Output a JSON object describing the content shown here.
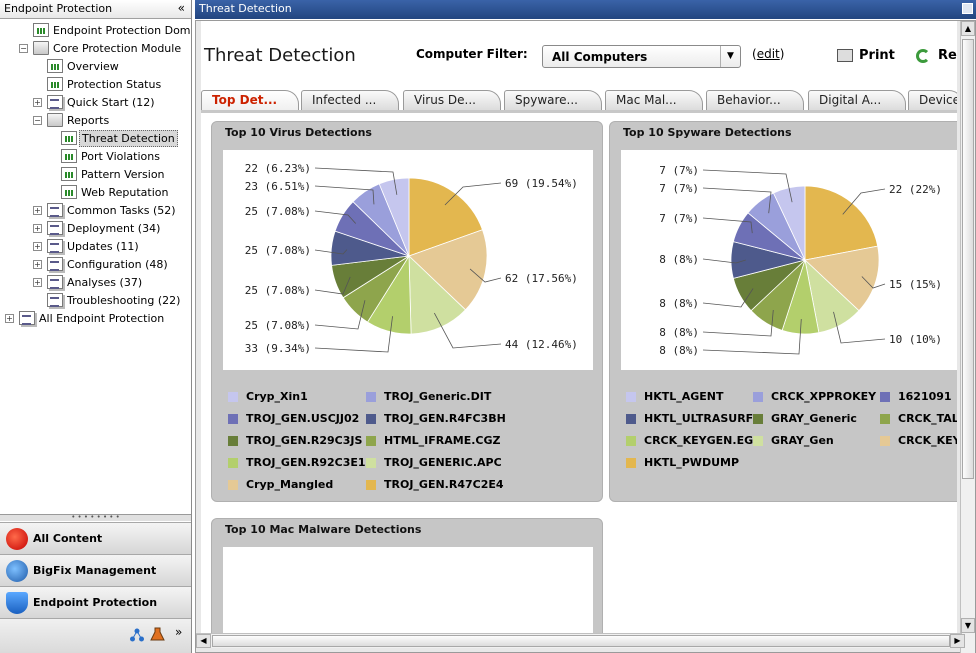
{
  "left_pane": {
    "title": "Endpoint Protection",
    "collapse_glyph": "«",
    "tree": [
      {
        "label": "Endpoint Protection Domain",
        "icon": "page-icon"
      },
      {
        "label": "Core Protection Module",
        "icon": "folder-icon",
        "expanded": true
      },
      {
        "label": "Overview",
        "icon": "report-icon"
      },
      {
        "label": "Protection Status",
        "icon": "report-icon"
      },
      {
        "label": "Quick Start (12)",
        "icon": "stack-icon"
      },
      {
        "label": "Reports",
        "icon": "folder-icon",
        "expanded": true
      },
      {
        "label": "Threat Detection",
        "icon": "report-icon",
        "selected": true
      },
      {
        "label": "Port Violations",
        "icon": "report-icon"
      },
      {
        "label": "Pattern Version",
        "icon": "report-icon"
      },
      {
        "label": "Web Reputation",
        "icon": "report-icon"
      },
      {
        "label": "Common Tasks (52)",
        "icon": "stack-icon"
      },
      {
        "label": "Deployment (34)",
        "icon": "stack-icon"
      },
      {
        "label": "Updates (11)",
        "icon": "stack-icon"
      },
      {
        "label": "Configuration (48)",
        "icon": "stack-icon"
      },
      {
        "label": "Analyses (37)",
        "icon": "stack-icon"
      },
      {
        "label": "Troubleshooting (22)",
        "icon": "stack-icon"
      },
      {
        "label": "All Endpoint Protection",
        "icon": "stack-icon"
      }
    ],
    "nav_buttons": [
      {
        "label": "All Content",
        "icon": "trendmicro-icon"
      },
      {
        "label": "BigFix Management",
        "icon": "globe-icon"
      },
      {
        "label": "Endpoint Protection",
        "icon": "shield-icon"
      }
    ],
    "footer_more": "»"
  },
  "right_pane": {
    "title": "Threat Detection",
    "heading": "Threat Detection",
    "filter_label": "Computer Filter:",
    "filter_value": "All Computers",
    "edit_link": "edit",
    "print_label": "Print",
    "refresh_label": "Refr",
    "tabs": [
      "Top Det...",
      "Infected ...",
      "Virus De...",
      "Spyware...",
      "Mac Mal...",
      "Behavior...",
      "Digital A...",
      "Device"
    ],
    "active_tab": 0
  },
  "panels": {
    "virus_title": "Top 10 Virus Detections",
    "spyware_title": "Top 10 Spyware Detections",
    "mac_title": "Top 10 Mac Malware Detections"
  },
  "colors": {
    "accent_title_bar": "#2c4f8c",
    "active_tab_text": "#cc2200",
    "panel_bg": "#c6c6c6"
  },
  "chart_data": [
    {
      "type": "pie",
      "title": "Top 10 Virus Detections",
      "slices": [
        {
          "name": "TROJ_GEN.R47C2E4",
          "value": 69,
          "label": "69 (19.54%)",
          "color": "#e3b74f"
        },
        {
          "name": "Cryp_Mangled",
          "value": 62,
          "label": "62 (17.56%)",
          "color": "#e5c995"
        },
        {
          "name": "TROJ_GENERIC.APC",
          "value": 44,
          "label": "44 (12.46%)",
          "color": "#cfe0a0"
        },
        {
          "name": "TROJ_GEN.R92C3E1",
          "value": 33,
          "label": "33 (9.34%)",
          "color": "#b3cf6c"
        },
        {
          "name": "HTML_IFRAME.CGZ",
          "value": 25,
          "label": "25 (7.08%)",
          "color": "#8ea54c"
        },
        {
          "name": "TROJ_GEN.R29C3JS",
          "value": 25,
          "label": "25 (7.08%)",
          "color": "#687e39"
        },
        {
          "name": "TROJ_GEN.R4FC3BH",
          "value": 25,
          "label": "25 (7.08%)",
          "color": "#4e5a8c"
        },
        {
          "name": "TROJ_GEN.USCJJ02",
          "value": 25,
          "label": "25 (7.08%)",
          "color": "#6e70b6"
        },
        {
          "name": "TROJ_Generic.DIT",
          "value": 23,
          "label": "23 (6.51%)",
          "color": "#9a9fdb"
        },
        {
          "name": "Cryp_Xin1",
          "value": 22,
          "label": "22 (6.23%)",
          "color": "#c5c6ee"
        }
      ],
      "legend": [
        "Cryp_Xin1",
        "TROJ_Generic.DIT",
        "TROJ_GEN.USCJJ02",
        "TROJ_GEN.R4FC3BH",
        "TROJ_GEN.R29C3JS",
        "HTML_IFRAME.CGZ",
        "TROJ_GEN.R92C3E1",
        "TROJ_GENERIC.APC",
        "Cryp_Mangled",
        "TROJ_GEN.R47C2E4"
      ]
    },
    {
      "type": "pie",
      "title": "Top 10 Spyware Detections",
      "slices": [
        {
          "name": "HKTL_PWDUMP",
          "value": 22,
          "label": "22 (22%)",
          "color": "#e3b74f"
        },
        {
          "name": "CRCK_KEYG",
          "value": 15,
          "label": "15 (15%)",
          "color": "#e5c995"
        },
        {
          "name": "GRAY_Gen",
          "value": 10,
          "label": "10 (10%)",
          "color": "#cfe0a0"
        },
        {
          "name": "CRCK_KEYGEN.EG",
          "value": 8,
          "label": "8 (8%)",
          "color": "#b3cf6c"
        },
        {
          "name": "CRCK_TALL",
          "value": 8,
          "label": "8 (8%)",
          "color": "#8ea54c"
        },
        {
          "name": "GRAY_Generic",
          "value": 8,
          "label": "8 (8%)",
          "color": "#687e39"
        },
        {
          "name": "HKTL_ULTRASURF",
          "value": 8,
          "label": "8 (8%)",
          "color": "#4e5a8c"
        },
        {
          "name": "1621091",
          "value": 7,
          "label": "7 (7%)",
          "color": "#6e70b6"
        },
        {
          "name": "CRCK_XPPROKEY",
          "value": 7,
          "label": "7 (7%)",
          "color": "#9a9fdb"
        },
        {
          "name": "HKTL_AGENT",
          "value": 7,
          "label": "7 (7%)",
          "color": "#c5c6ee"
        }
      ],
      "legend": [
        "HKTL_AGENT",
        "CRCK_XPPROKEY",
        "1621091",
        "HKTL_ULTRASURF",
        "GRAY_Generic",
        "CRCK_TALL",
        "CRCK_KEYGEN.EG",
        "GRAY_Gen",
        "CRCK_KEYG",
        "HKTL_PWDUMP"
      ]
    }
  ]
}
